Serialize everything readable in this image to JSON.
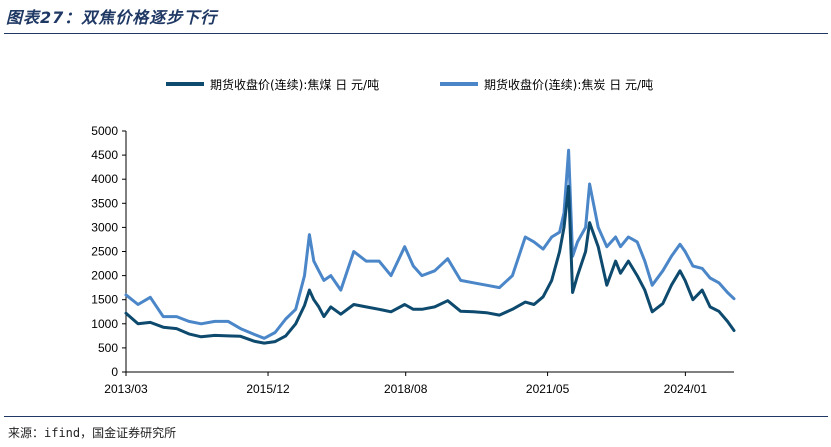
{
  "title": "图表27：双焦价格逐步下行",
  "source": "来源：ifind，国金证券研究所",
  "colors": {
    "coal": "#0d4a6e",
    "coke": "#4a86c8",
    "frame": "#1f3864"
  },
  "chart_data": {
    "type": "line",
    "title": "",
    "xlabel": "",
    "ylabel": "",
    "ylim": [
      0,
      5000
    ],
    "yticks": [
      0,
      500,
      1000,
      1500,
      2000,
      2500,
      3000,
      3500,
      4000,
      4500,
      5000
    ],
    "ytick_labels": [
      "0",
      "500",
      "1000",
      "1500",
      "2000",
      "2500",
      "3000",
      "3500",
      "4000",
      "4500",
      "5000"
    ],
    "xlim": [
      "2013-03-22",
      "2024-12-31"
    ],
    "xticks": [
      "2013-03-22",
      "2015-12-22",
      "2018-08-22",
      "2021-05-22",
      "2024-01-22"
    ],
    "xtick_labels": [
      "2013/03",
      "2015/12",
      "2018/08",
      "2021/05",
      "2024/01"
    ],
    "legend": "top",
    "grid": false,
    "series": [
      {
        "name": "期货收盘价(连续):焦煤 日 元/吨",
        "color": "#0d4a6e",
        "x": [
          "2013-03-22",
          "2013-06-15",
          "2013-09-10",
          "2013-12-10",
          "2014-03-15",
          "2014-06-10",
          "2014-09-05",
          "2014-12-10",
          "2015-03-15",
          "2015-06-10",
          "2015-09-15",
          "2015-11-25",
          "2016-02-10",
          "2016-04-25",
          "2016-07-05",
          "2016-09-05",
          "2016-10-10",
          "2016-11-10",
          "2016-12-15",
          "2017-01-20",
          "2017-03-10",
          "2017-05-20",
          "2017-08-20",
          "2017-11-15",
          "2018-02-15",
          "2018-05-10",
          "2018-08-15",
          "2018-10-15",
          "2018-12-15",
          "2019-03-15",
          "2019-06-15",
          "2019-09-15",
          "2019-12-15",
          "2020-03-15",
          "2020-06-15",
          "2020-09-15",
          "2020-12-15",
          "2021-02-15",
          "2021-04-20",
          "2021-06-20",
          "2021-08-15",
          "2021-09-15",
          "2021-10-18",
          "2021-11-15",
          "2021-12-20",
          "2022-02-15",
          "2022-03-15",
          "2022-05-15",
          "2022-07-15",
          "2022-09-15",
          "2022-10-20",
          "2022-12-15",
          "2023-02-15",
          "2023-04-10",
          "2023-06-01",
          "2023-08-15",
          "2023-10-15",
          "2023-12-15",
          "2024-01-20",
          "2024-03-15",
          "2024-05-20",
          "2024-07-15",
          "2024-09-15",
          "2024-11-15",
          "2024-12-31"
        ],
        "values": [
          1220,
          1000,
          1030,
          930,
          900,
          790,
          730,
          760,
          750,
          740,
          640,
          600,
          630,
          750,
          1000,
          1380,
          1700,
          1500,
          1350,
          1150,
          1350,
          1200,
          1400,
          1350,
          1300,
          1250,
          1400,
          1300,
          1300,
          1350,
          1480,
          1260,
          1250,
          1230,
          1180,
          1300,
          1450,
          1400,
          1560,
          1900,
          2500,
          3000,
          3850,
          1650,
          2000,
          2500,
          3100,
          2600,
          1800,
          2300,
          2050,
          2300,
          2000,
          1700,
          1250,
          1420,
          1800,
          2100,
          1900,
          1500,
          1700,
          1350,
          1260,
          1050,
          860
        ]
      },
      {
        "name": "期货收盘价(连续):焦炭 日 元/吨",
        "color": "#4a86c8",
        "x": [
          "2013-03-22",
          "2013-06-15",
          "2013-09-10",
          "2013-12-10",
          "2014-03-15",
          "2014-06-10",
          "2014-09-05",
          "2014-12-10",
          "2015-03-15",
          "2015-06-10",
          "2015-09-15",
          "2015-11-25",
          "2016-02-10",
          "2016-04-25",
          "2016-07-05",
          "2016-09-05",
          "2016-10-10",
          "2016-11-10",
          "2016-12-15",
          "2017-01-20",
          "2017-03-10",
          "2017-05-20",
          "2017-08-20",
          "2017-11-15",
          "2018-02-15",
          "2018-05-10",
          "2018-08-15",
          "2018-10-15",
          "2018-12-15",
          "2019-03-15",
          "2019-06-15",
          "2019-09-15",
          "2019-12-15",
          "2020-03-15",
          "2020-06-15",
          "2020-09-15",
          "2020-12-15",
          "2021-02-15",
          "2021-04-20",
          "2021-06-20",
          "2021-08-15",
          "2021-09-15",
          "2021-10-18",
          "2021-11-15",
          "2021-12-20",
          "2022-02-15",
          "2022-03-15",
          "2022-05-15",
          "2022-07-15",
          "2022-09-15",
          "2022-10-20",
          "2022-12-15",
          "2023-02-15",
          "2023-04-10",
          "2023-06-01",
          "2023-08-15",
          "2023-10-15",
          "2023-12-15",
          "2024-01-20",
          "2024-03-15",
          "2024-05-20",
          "2024-07-15",
          "2024-09-15",
          "2024-11-15",
          "2024-12-31"
        ],
        "values": [
          1600,
          1400,
          1550,
          1150,
          1150,
          1050,
          1000,
          1050,
          1050,
          900,
          780,
          700,
          820,
          1100,
          1300,
          2000,
          2850,
          2300,
          2100,
          1900,
          2000,
          1700,
          2500,
          2300,
          2300,
          2000,
          2600,
          2200,
          2000,
          2100,
          2350,
          1900,
          1850,
          1800,
          1750,
          2000,
          2800,
          2700,
          2550,
          2800,
          2900,
          3300,
          4600,
          2400,
          2700,
          3000,
          3900,
          3000,
          2600,
          2800,
          2600,
          2800,
          2700,
          2300,
          1800,
          2100,
          2400,
          2650,
          2500,
          2200,
          2150,
          1950,
          1850,
          1650,
          1520
        ]
      }
    ]
  }
}
